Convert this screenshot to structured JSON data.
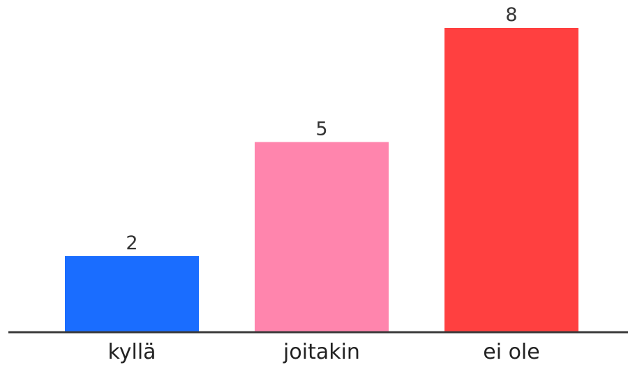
{
  "chart_data": {
    "type": "bar",
    "categories": [
      "kyllä",
      "joitakin",
      "ei ole"
    ],
    "values": [
      2,
      5,
      8
    ],
    "colors": [
      "#1a6dff",
      "#ff85ad",
      "#ff4040"
    ],
    "title": "",
    "xlabel": "",
    "ylabel": "",
    "ylim": [
      0,
      8
    ],
    "grid": false,
    "legend": "none",
    "show_value_labels": true
  }
}
